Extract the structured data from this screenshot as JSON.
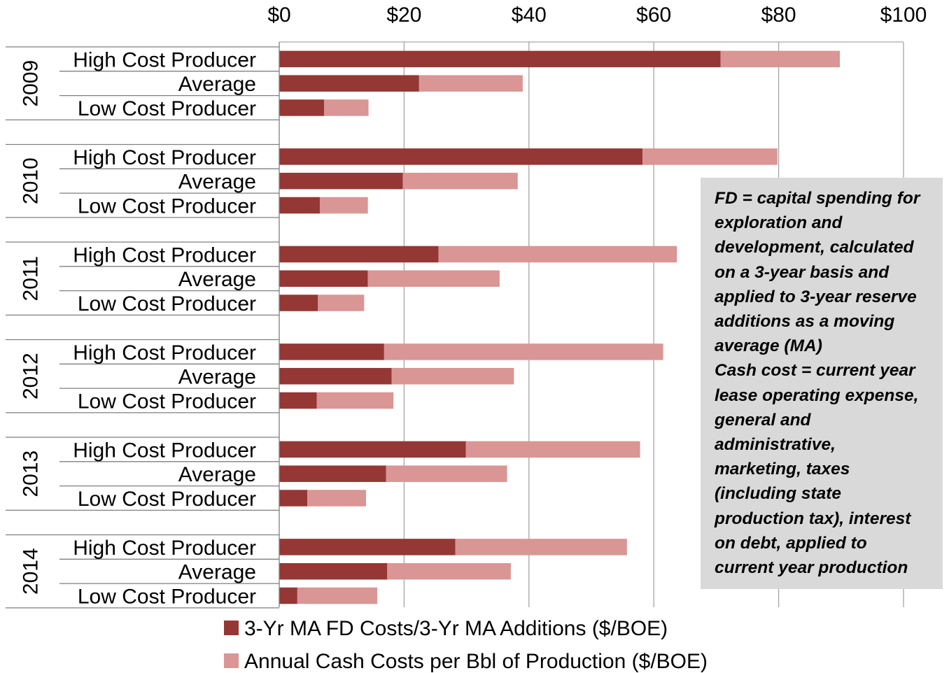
{
  "colors": {
    "fd_series": "#953735",
    "cash_series": "#d99694",
    "gridline": "#a6a6a6",
    "note_background": "#d9d9d9"
  },
  "chart_data": {
    "type": "bar",
    "orientation": "horizontal",
    "stacked": true,
    "xlim": [
      0,
      100
    ],
    "x_ticks": [
      "$0",
      "$20",
      "$40",
      "$60",
      "$80",
      "$100"
    ],
    "x_tick_values": [
      0,
      20,
      40,
      60,
      80,
      100
    ],
    "axis_position": "top",
    "grid": true,
    "legend_position": "bottom",
    "groups": [
      {
        "year": "2009",
        "categories": [
          "High Cost Producer",
          "Average",
          "Low Cost Producer"
        ]
      },
      {
        "year": "2010",
        "categories": [
          "High Cost Producer",
          "Average",
          "Low Cost Producer"
        ]
      },
      {
        "year": "2011",
        "categories": [
          "High Cost Producer",
          "Average",
          "Low Cost Producer"
        ]
      },
      {
        "year": "2012",
        "categories": [
          "High Cost Producer",
          "Average",
          "Low Cost Producer"
        ]
      },
      {
        "year": "2013",
        "categories": [
          "High Cost Producer",
          "Average",
          "Low Cost Producer"
        ]
      },
      {
        "year": "2014",
        "categories": [
          "High Cost Producer",
          "Average",
          "Low Cost Producer"
        ]
      }
    ],
    "series": [
      {
        "name": "3-Yr MA FD Costs/3-Yr MA Additions ($/BOE)",
        "values": [
          [
            70.7,
            22.4,
            7.2
          ],
          [
            58.2,
            19.8,
            6.5
          ],
          [
            25.5,
            14.2,
            6.2
          ],
          [
            16.8,
            18.0,
            6.0
          ],
          [
            29.9,
            17.1,
            4.5
          ],
          [
            28.2,
            17.3,
            2.9
          ]
        ]
      },
      {
        "name": "Annual Cash Costs per Bbl of Production ($/BOE)",
        "values": [
          [
            19.1,
            16.6,
            7.1
          ],
          [
            21.6,
            18.4,
            7.7
          ],
          [
            38.2,
            21.1,
            7.4
          ],
          [
            44.7,
            19.6,
            12.3
          ],
          [
            27.9,
            19.4,
            9.4
          ],
          [
            27.5,
            19.8,
            12.8
          ]
        ]
      }
    ]
  },
  "note": {
    "text": "FD = capital spending for\nexploration and\ndevelopment, calculated\non a 3-year basis and\napplied to 3-year reserve\nadditions as a moving\naverage (MA)\nCash cost = current year\nlease operating expense,\ngeneral and\nadministrative,\nmarketing, taxes\n(including state\nproduction tax), interest\non debt, applied to\ncurrent year production"
  }
}
